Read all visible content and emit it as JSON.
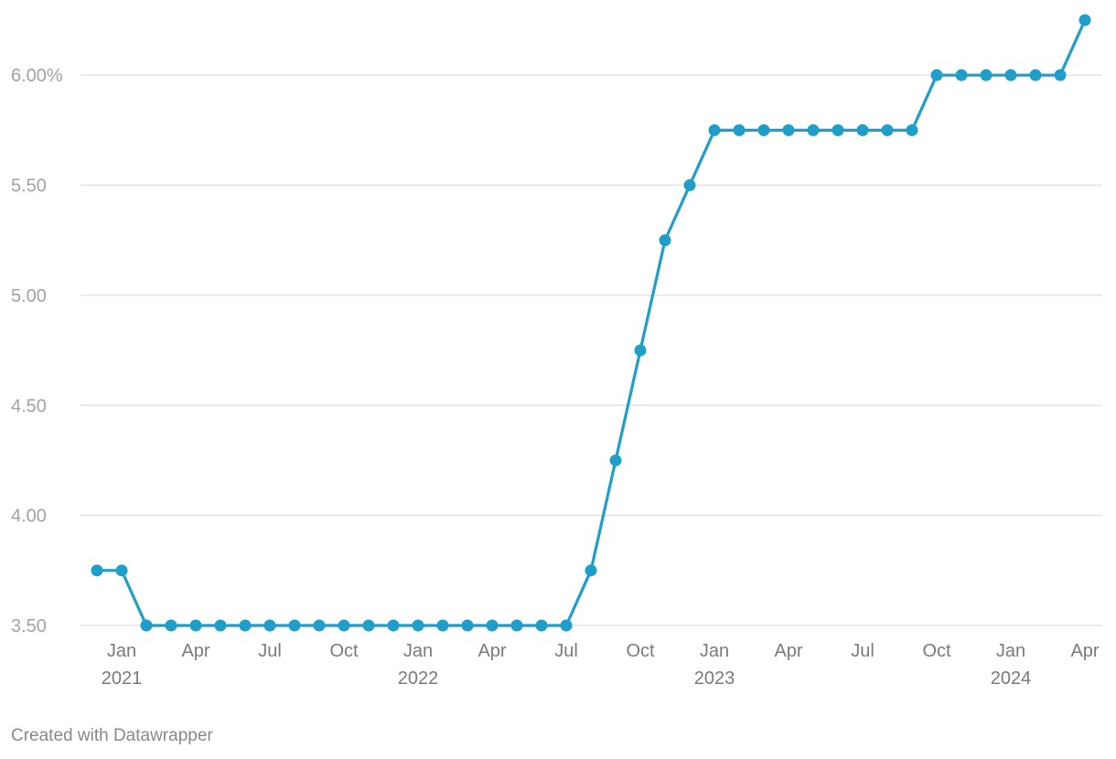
{
  "chart_data": {
    "type": "line",
    "x": [
      "2020-12",
      "2021-01",
      "2021-02",
      "2021-03",
      "2021-04",
      "2021-05",
      "2021-06",
      "2021-07",
      "2021-08",
      "2021-09",
      "2021-10",
      "2021-11",
      "2021-12",
      "2022-01",
      "2022-02",
      "2022-03",
      "2022-04",
      "2022-05",
      "2022-06",
      "2022-07",
      "2022-08",
      "2022-09",
      "2022-10",
      "2022-11",
      "2022-12",
      "2023-01",
      "2023-02",
      "2023-03",
      "2023-04",
      "2023-05",
      "2023-06",
      "2023-07",
      "2023-08",
      "2023-09",
      "2023-10",
      "2023-11",
      "2023-12",
      "2024-01",
      "2024-02",
      "2024-03",
      "2024-04"
    ],
    "series": [
      {
        "values": [
          3.75,
          3.75,
          3.5,
          3.5,
          3.5,
          3.5,
          3.5,
          3.5,
          3.5,
          3.5,
          3.5,
          3.5,
          3.5,
          3.5,
          3.5,
          3.5,
          3.5,
          3.5,
          3.5,
          3.5,
          3.75,
          4.25,
          4.75,
          5.25,
          5.5,
          5.75,
          5.75,
          5.75,
          5.75,
          5.75,
          5.75,
          5.75,
          5.75,
          5.75,
          6.0,
          6.0,
          6.0,
          6.0,
          6.0,
          6.0,
          6.25
        ]
      }
    ],
    "yticks": [
      {
        "value": 3.5,
        "label": "3.50"
      },
      {
        "value": 4.0,
        "label": "4.00"
      },
      {
        "value": 4.5,
        "label": "4.50"
      },
      {
        "value": 5.0,
        "label": "5.00"
      },
      {
        "value": 5.5,
        "label": "5.50"
      },
      {
        "value": 6.0,
        "label": "6.00%"
      }
    ],
    "xticks": [
      {
        "date": "2021-01",
        "label": "Jan",
        "year": "2021"
      },
      {
        "date": "2021-04",
        "label": "Apr",
        "year": ""
      },
      {
        "date": "2021-07",
        "label": "Jul",
        "year": ""
      },
      {
        "date": "2021-10",
        "label": "Oct",
        "year": ""
      },
      {
        "date": "2022-01",
        "label": "Jan",
        "year": "2022"
      },
      {
        "date": "2022-04",
        "label": "Apr",
        "year": ""
      },
      {
        "date": "2022-07",
        "label": "Jul",
        "year": ""
      },
      {
        "date": "2022-10",
        "label": "Oct",
        "year": ""
      },
      {
        "date": "2023-01",
        "label": "Jan",
        "year": "2023"
      },
      {
        "date": "2023-04",
        "label": "Apr",
        "year": ""
      },
      {
        "date": "2023-07",
        "label": "Jul",
        "year": ""
      },
      {
        "date": "2023-10",
        "label": "Oct",
        "year": ""
      },
      {
        "date": "2024-01",
        "label": "Jan",
        "year": "2024"
      },
      {
        "date": "2024-04",
        "label": "Apr",
        "year": ""
      }
    ],
    "ylim": [
      3.5,
      6.25
    ],
    "grid": true,
    "line_color": "#1f9ec9",
    "title": "",
    "xlabel": "",
    "ylabel": ""
  },
  "footer": {
    "credit": "Created with Datawrapper"
  }
}
